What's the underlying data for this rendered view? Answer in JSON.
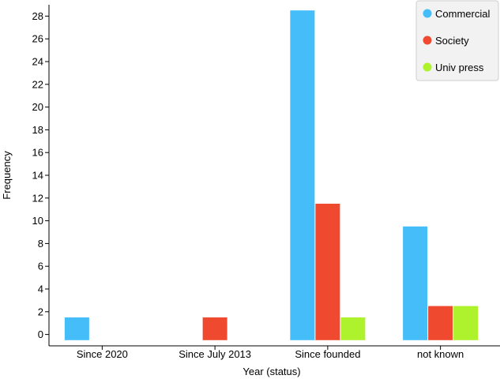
{
  "chart_data": {
    "type": "bar",
    "xlabel": "Year (status)",
    "ylabel": "Frequency",
    "categories": [
      "Since 2020",
      "Since July 2013",
      "Since founded",
      "not known"
    ],
    "series": [
      {
        "name": "Commercial",
        "color": "#45bdf8",
        "values": [
          1,
          null,
          28,
          9
        ]
      },
      {
        "name": "Society",
        "color": "#ef4a30",
        "values": [
          null,
          1,
          11,
          2
        ]
      },
      {
        "name": "Univ press",
        "color": "#aef22e",
        "values": [
          null,
          null,
          1,
          2
        ]
      }
    ],
    "ylim": [
      -1,
      29
    ],
    "yticks": [
      0,
      2,
      4,
      6,
      8,
      10,
      12,
      14,
      16,
      18,
      20,
      22,
      24,
      26,
      28
    ],
    "legend_position": "top-right",
    "grid": false
  }
}
